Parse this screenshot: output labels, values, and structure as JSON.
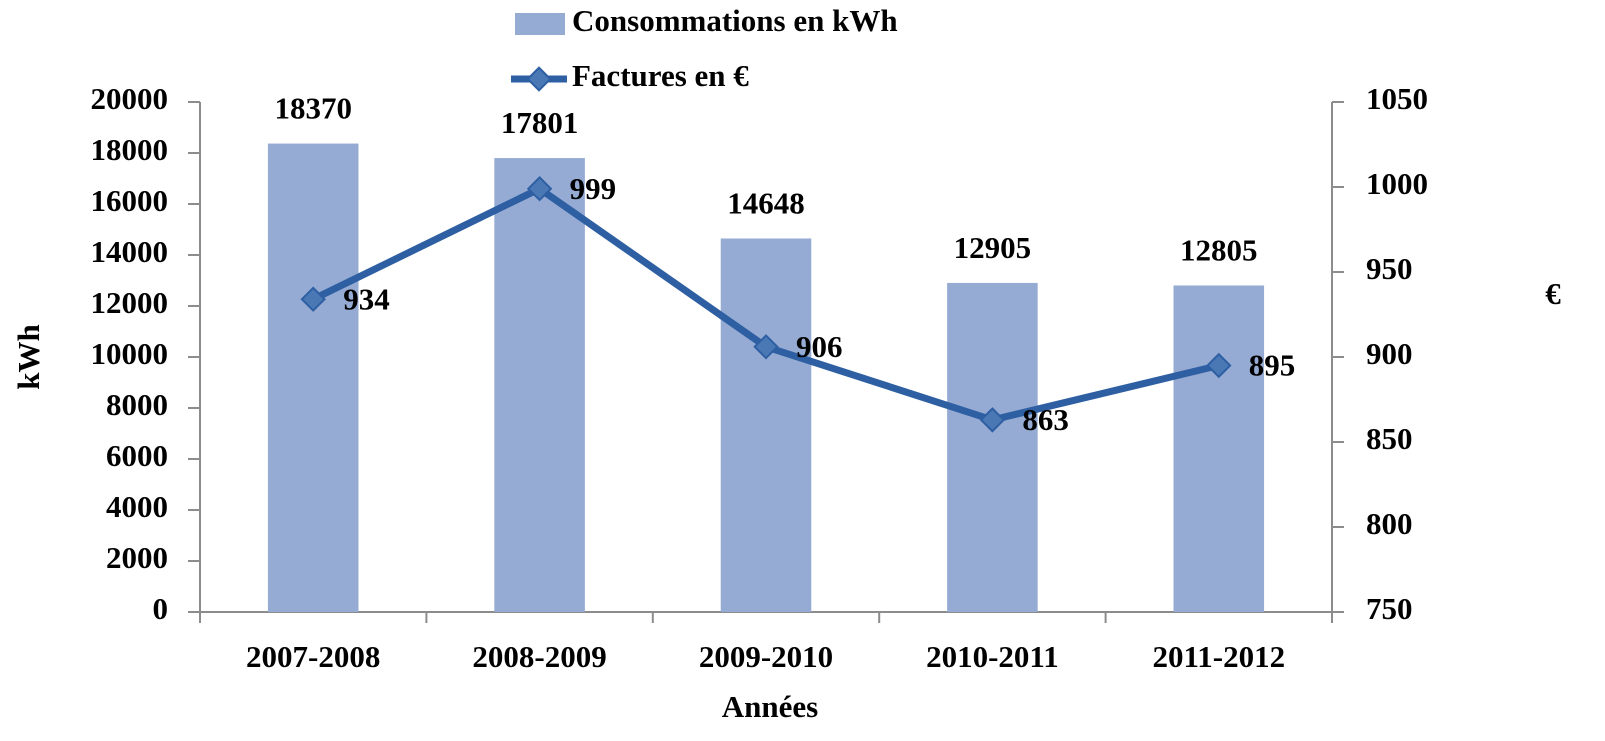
{
  "chart_data": {
    "type": "bar",
    "categories": [
      "2007-2008",
      "2008-2009",
      "2009-2010",
      "2010-2011",
      "2011-2012"
    ],
    "series": [
      {
        "name": "Consommations en kWh",
        "color": "#95abd3",
        "values": [
          18370,
          17801,
          14648,
          12905,
          12805
        ]
      },
      {
        "name": "Factures en €",
        "color": "#2e5fa3",
        "type": "line",
        "axis": "y2",
        "values": [
          934,
          999,
          906,
          863,
          895
        ]
      }
    ],
    "ylabel": "kWh",
    "y2label": "€",
    "xlabel": "Années",
    "ylim": [
      0,
      20000
    ],
    "yticks": [
      0,
      2000,
      4000,
      6000,
      8000,
      10000,
      12000,
      14000,
      16000,
      18000,
      20000
    ],
    "y2lim": [
      750,
      1050
    ],
    "y2ticks": [
      750,
      800,
      850,
      900,
      950,
      1000,
      1050
    ],
    "legend": "top"
  }
}
